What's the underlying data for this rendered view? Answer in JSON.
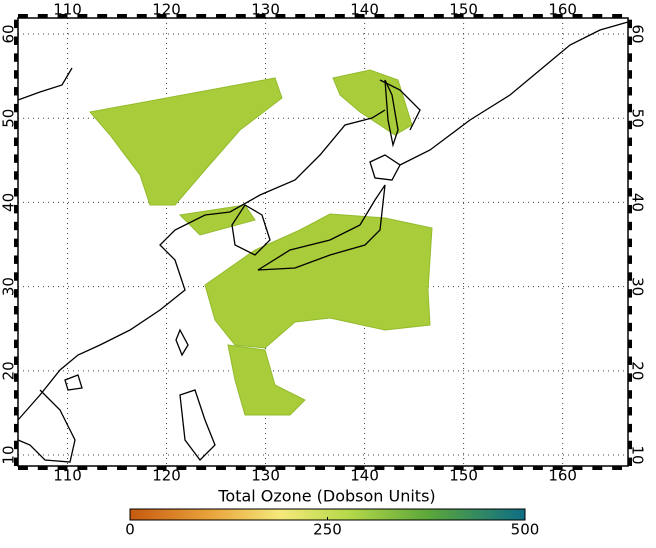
{
  "map": {
    "lonlim": [
      105,
      166.6
    ],
    "latlim": [
      8.7,
      61.9
    ],
    "lon_ticks": [
      110,
      120,
      130,
      140,
      150,
      160
    ],
    "lat_ticks": [
      10,
      20,
      30,
      40,
      50,
      60
    ]
  },
  "colorbar": {
    "title": "Total Ozone (Dobson Units)",
    "lim": [
      0,
      500
    ],
    "ticks": [
      0,
      250,
      500
    ]
  }
}
